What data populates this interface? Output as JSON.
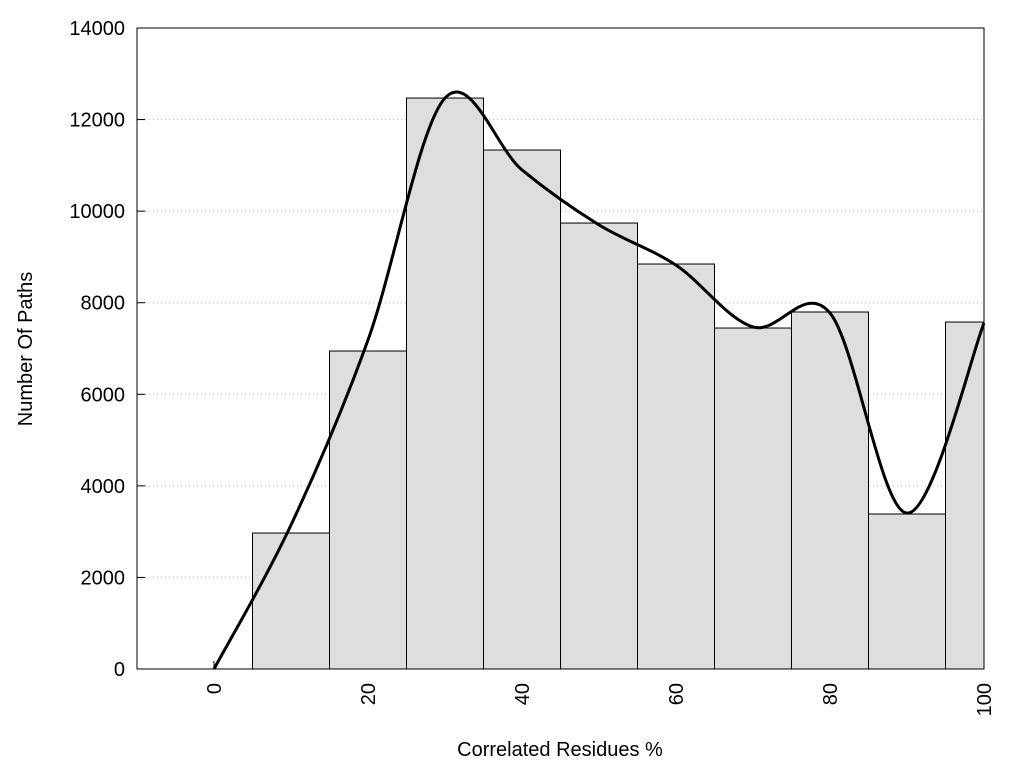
{
  "chart_data": {
    "type": "histogram",
    "xlabel": "Correlated Residues %",
    "ylabel": "Number Of Paths",
    "bins": [
      5,
      15,
      25,
      35,
      45,
      55,
      65,
      75,
      85,
      95,
      100
    ],
    "counts": [
      2970,
      6945,
      12470,
      11335,
      9740,
      8845,
      7447,
      7797,
      3385,
      7578
    ],
    "color": "#dedede",
    "line": {
      "x": [
        0,
        10,
        20,
        30,
        40,
        50,
        60,
        70,
        80,
        90,
        100
      ],
      "values": [
        0,
        3145,
        7185,
        12470,
        10900,
        9700,
        8820,
        7470,
        7775,
        3405,
        7555
      ],
      "color": "#000000"
    },
    "xlim": [
      -10,
      100
    ],
    "ylim": [
      0,
      14000
    ],
    "xticks": [
      0,
      20,
      40,
      60,
      80,
      100
    ],
    "yticks": [
      0,
      2000,
      4000,
      6000,
      8000,
      10000,
      12000,
      14000
    ],
    "grid": true
  }
}
